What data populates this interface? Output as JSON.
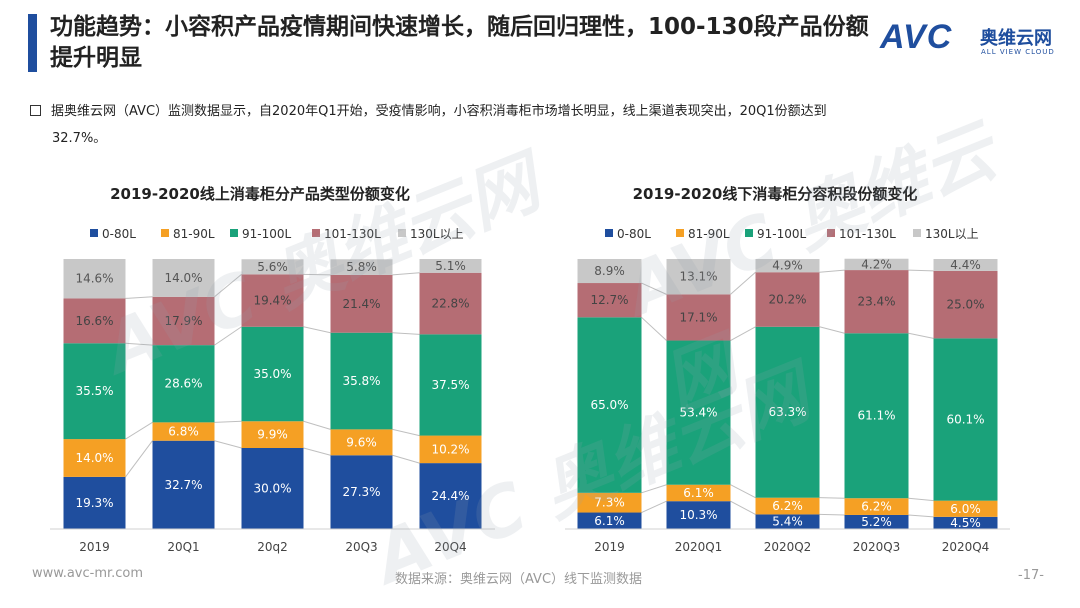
{
  "header": {
    "title": "功能趋势：小容积产品疫情期间快速增长，随后回归理性，100-130段产品份额提升明显",
    "logo_text": "AVC",
    "logo_cn": "奥维云网",
    "logo_en": "ALL VIEW CLOUD"
  },
  "bullet": {
    "line1": "据奥维云网（AVC）监测数据显示，自2020年Q1开始，受疫情影响，小容积消毒柜市场增长明显，线上渠道表现突出，20Q1份额达到",
    "line2": "32.7%。"
  },
  "watermark": {
    "text": "AVC 奥维云网"
  },
  "footer": {
    "website": "www.avc-mr.com",
    "source": "数据来源：奥维云网（AVC）线下监测数据",
    "page": "-17-"
  },
  "colors": {
    "s0": "#1f4e9e",
    "s1": "#f5a024",
    "s2": "#1aa27a",
    "s3": "#b56d74",
    "s4": "#c8c8c8"
  },
  "chart_data": [
    {
      "type": "stacked-bar",
      "title": "2019-2020线上消毒柜分产品类型份额变化",
      "categories": [
        "2019",
        "20Q1",
        "20q2",
        "20Q3",
        "20Q4"
      ],
      "series": [
        {
          "name": "0-80L",
          "values": [
            19.3,
            32.7,
            30.0,
            27.3,
            24.4
          ]
        },
        {
          "name": "81-90L",
          "values": [
            14.0,
            6.8,
            9.9,
            9.6,
            10.2
          ]
        },
        {
          "name": "91-100L",
          "values": [
            35.5,
            28.6,
            35.0,
            35.8,
            37.5
          ]
        },
        {
          "name": "101-130L",
          "values": [
            16.6,
            17.9,
            19.4,
            21.4,
            22.8
          ]
        },
        {
          "name": "130L以上",
          "values": [
            14.6,
            14.0,
            5.6,
            5.8,
            5.1
          ]
        }
      ],
      "labels": [
        [
          "19.3%",
          "32.7%",
          "30.0%",
          "27.3%",
          "24.4%"
        ],
        [
          "14.0%",
          "6.8%",
          "9.9%",
          "9.6%",
          "10.2%"
        ],
        [
          "35.5%",
          "28.6%",
          "35.0%",
          "35.8%",
          "37.5%"
        ],
        [
          "16.6%",
          "17.9%",
          "19.4%",
          "21.4%",
          "22.8%"
        ],
        [
          "14.6%",
          "14.0%",
          "5.6%",
          "5.8%",
          "5.1%"
        ]
      ],
      "ylim": [
        0,
        100
      ],
      "legend": "top"
    },
    {
      "type": "stacked-bar",
      "title": "2019-2020线下消毒柜分容积段份额变化",
      "categories": [
        "2019",
        "2020Q1",
        "2020Q2",
        "2020Q3",
        "2020Q4"
      ],
      "series": [
        {
          "name": "0-80L",
          "values": [
            6.1,
            10.3,
            5.4,
            5.2,
            4.5
          ]
        },
        {
          "name": "81-90L",
          "values": [
            7.3,
            6.1,
            6.2,
            6.2,
            6.0
          ]
        },
        {
          "name": "91-100L",
          "values": [
            65.0,
            53.4,
            63.3,
            61.1,
            60.1
          ]
        },
        {
          "name": "101-130L",
          "values": [
            12.7,
            17.1,
            20.2,
            23.4,
            25.0
          ]
        },
        {
          "name": "130L以上",
          "values": [
            8.9,
            13.1,
            4.9,
            4.2,
            4.4
          ]
        }
      ],
      "labels": [
        [
          "6.1%",
          "10.3%",
          "5.4%",
          "5.2%",
          "4.5%"
        ],
        [
          "7.3%",
          "6.1%",
          "6.2%",
          "6.2%",
          "6.0%"
        ],
        [
          "65.0%",
          "53.4%",
          "63.3%",
          "61.1%",
          "60.1%"
        ],
        [
          "12.7%",
          "17.1%",
          "20.2%",
          "23.4%",
          "25.0%"
        ],
        [
          "8.9%",
          "13.1%",
          "4.9%",
          "4.2%",
          "4.4%"
        ]
      ],
      "ylim": [
        0,
        100
      ],
      "legend": "top"
    }
  ]
}
